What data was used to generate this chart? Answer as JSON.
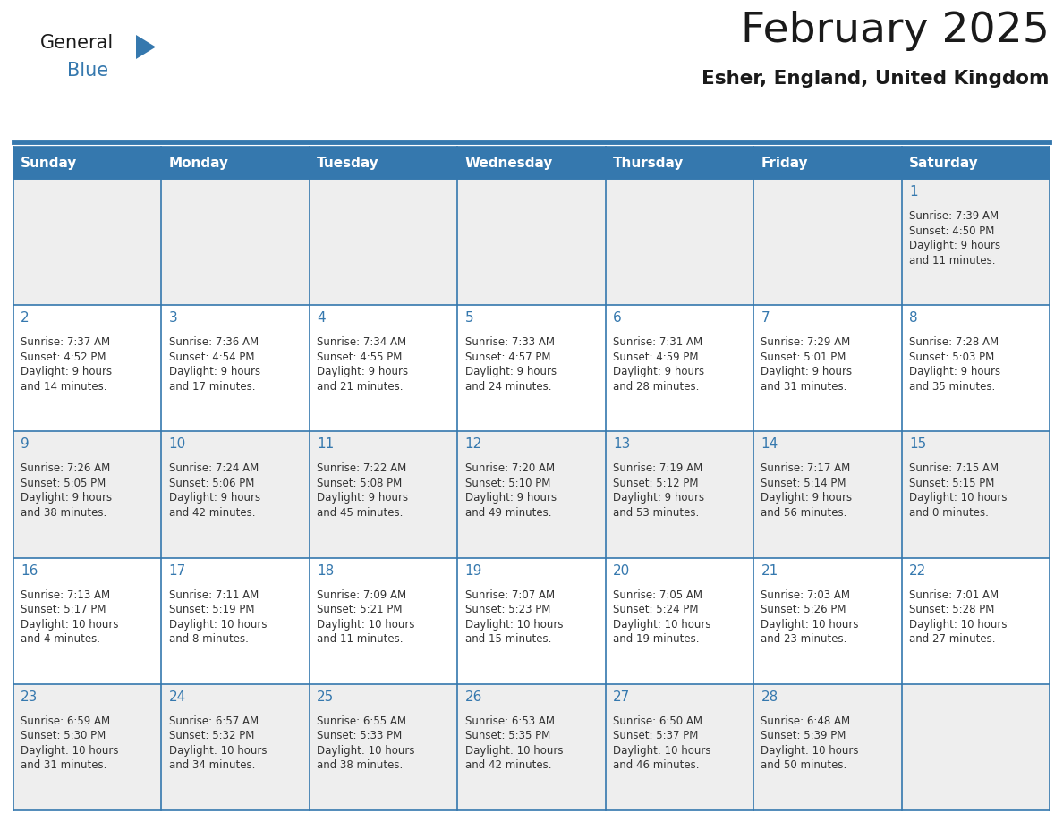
{
  "title": "February 2025",
  "subtitle": "Esher, England, United Kingdom",
  "days_of_week": [
    "Sunday",
    "Monday",
    "Tuesday",
    "Wednesday",
    "Thursday",
    "Friday",
    "Saturday"
  ],
  "header_bg": "#3578ae",
  "header_text": "#ffffff",
  "cell_bg_light": "#eeeeee",
  "cell_bg_white": "#ffffff",
  "cell_border": "#3578ae",
  "day_number_color": "#3578ae",
  "info_text_color": "#333333",
  "background_color": "#ffffff",
  "logo_general_color": "#1a1a1a",
  "logo_blue_color": "#3578ae",
  "title_color": "#1a1a1a",
  "subtitle_color": "#1a1a1a",
  "weeks": [
    [
      null,
      null,
      null,
      null,
      null,
      null,
      1
    ],
    [
      2,
      3,
      4,
      5,
      6,
      7,
      8
    ],
    [
      9,
      10,
      11,
      12,
      13,
      14,
      15
    ],
    [
      16,
      17,
      18,
      19,
      20,
      21,
      22
    ],
    [
      23,
      24,
      25,
      26,
      27,
      28,
      null
    ]
  ],
  "cell_data": {
    "1": {
      "sunrise": "7:39 AM",
      "sunset": "4:50 PM",
      "daylight_h": "9 hours",
      "daylight_m": "and 11 minutes."
    },
    "2": {
      "sunrise": "7:37 AM",
      "sunset": "4:52 PM",
      "daylight_h": "9 hours",
      "daylight_m": "and 14 minutes."
    },
    "3": {
      "sunrise": "7:36 AM",
      "sunset": "4:54 PM",
      "daylight_h": "9 hours",
      "daylight_m": "and 17 minutes."
    },
    "4": {
      "sunrise": "7:34 AM",
      "sunset": "4:55 PM",
      "daylight_h": "9 hours",
      "daylight_m": "and 21 minutes."
    },
    "5": {
      "sunrise": "7:33 AM",
      "sunset": "4:57 PM",
      "daylight_h": "9 hours",
      "daylight_m": "and 24 minutes."
    },
    "6": {
      "sunrise": "7:31 AM",
      "sunset": "4:59 PM",
      "daylight_h": "9 hours",
      "daylight_m": "and 28 minutes."
    },
    "7": {
      "sunrise": "7:29 AM",
      "sunset": "5:01 PM",
      "daylight_h": "9 hours",
      "daylight_m": "and 31 minutes."
    },
    "8": {
      "sunrise": "7:28 AM",
      "sunset": "5:03 PM",
      "daylight_h": "9 hours",
      "daylight_m": "and 35 minutes."
    },
    "9": {
      "sunrise": "7:26 AM",
      "sunset": "5:05 PM",
      "daylight_h": "9 hours",
      "daylight_m": "and 38 minutes."
    },
    "10": {
      "sunrise": "7:24 AM",
      "sunset": "5:06 PM",
      "daylight_h": "9 hours",
      "daylight_m": "and 42 minutes."
    },
    "11": {
      "sunrise": "7:22 AM",
      "sunset": "5:08 PM",
      "daylight_h": "9 hours",
      "daylight_m": "and 45 minutes."
    },
    "12": {
      "sunrise": "7:20 AM",
      "sunset": "5:10 PM",
      "daylight_h": "9 hours",
      "daylight_m": "and 49 minutes."
    },
    "13": {
      "sunrise": "7:19 AM",
      "sunset": "5:12 PM",
      "daylight_h": "9 hours",
      "daylight_m": "and 53 minutes."
    },
    "14": {
      "sunrise": "7:17 AM",
      "sunset": "5:14 PM",
      "daylight_h": "9 hours",
      "daylight_m": "and 56 minutes."
    },
    "15": {
      "sunrise": "7:15 AM",
      "sunset": "5:15 PM",
      "daylight_h": "10 hours",
      "daylight_m": "and 0 minutes."
    },
    "16": {
      "sunrise": "7:13 AM",
      "sunset": "5:17 PM",
      "daylight_h": "10 hours",
      "daylight_m": "and 4 minutes."
    },
    "17": {
      "sunrise": "7:11 AM",
      "sunset": "5:19 PM",
      "daylight_h": "10 hours",
      "daylight_m": "and 8 minutes."
    },
    "18": {
      "sunrise": "7:09 AM",
      "sunset": "5:21 PM",
      "daylight_h": "10 hours",
      "daylight_m": "and 11 minutes."
    },
    "19": {
      "sunrise": "7:07 AM",
      "sunset": "5:23 PM",
      "daylight_h": "10 hours",
      "daylight_m": "and 15 minutes."
    },
    "20": {
      "sunrise": "7:05 AM",
      "sunset": "5:24 PM",
      "daylight_h": "10 hours",
      "daylight_m": "and 19 minutes."
    },
    "21": {
      "sunrise": "7:03 AM",
      "sunset": "5:26 PM",
      "daylight_h": "10 hours",
      "daylight_m": "and 23 minutes."
    },
    "22": {
      "sunrise": "7:01 AM",
      "sunset": "5:28 PM",
      "daylight_h": "10 hours",
      "daylight_m": "and 27 minutes."
    },
    "23": {
      "sunrise": "6:59 AM",
      "sunset": "5:30 PM",
      "daylight_h": "10 hours",
      "daylight_m": "and 31 minutes."
    },
    "24": {
      "sunrise": "6:57 AM",
      "sunset": "5:32 PM",
      "daylight_h": "10 hours",
      "daylight_m": "and 34 minutes."
    },
    "25": {
      "sunrise": "6:55 AM",
      "sunset": "5:33 PM",
      "daylight_h": "10 hours",
      "daylight_m": "and 38 minutes."
    },
    "26": {
      "sunrise": "6:53 AM",
      "sunset": "5:35 PM",
      "daylight_h": "10 hours",
      "daylight_m": "and 42 minutes."
    },
    "27": {
      "sunrise": "6:50 AM",
      "sunset": "5:37 PM",
      "daylight_h": "10 hours",
      "daylight_m": "and 46 minutes."
    },
    "28": {
      "sunrise": "6:48 AM",
      "sunset": "5:39 PM",
      "daylight_h": "10 hours",
      "daylight_m": "and 50 minutes."
    }
  }
}
